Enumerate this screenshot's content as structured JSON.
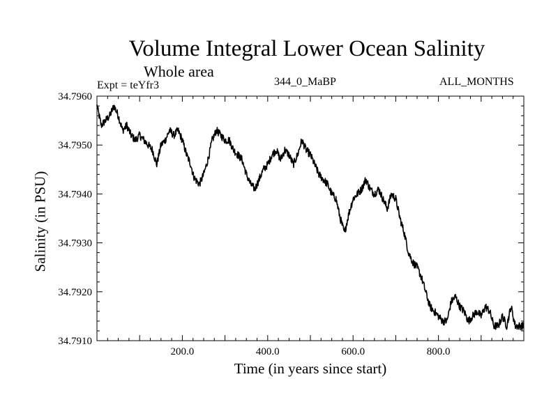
{
  "chart_data": {
    "type": "line",
    "title": "Volume Integral Lower Ocean Salinity",
    "subtitle": "Whole area",
    "experiment_label": "Expt = teYfr3",
    "run_label": "344_0_MaBP",
    "period_label": "ALL_MONTHS",
    "xlabel": "Time (in years since start)",
    "ylabel": "Salinity (in PSU)",
    "xlim": [
      0,
      1000
    ],
    "ylim": [
      34.791,
      34.796
    ],
    "x_ticks": [
      200,
      400,
      600,
      800
    ],
    "x_tick_labels": [
      "200.0",
      "400.0",
      "600.0",
      "800.0"
    ],
    "y_ticks": [
      34.791,
      34.792,
      34.793,
      34.794,
      34.795,
      34.796
    ],
    "y_tick_labels": [
      "34.7910",
      "34.7920",
      "34.7930",
      "34.7940",
      "34.7950",
      "34.7960"
    ],
    "grid": false,
    "series": [
      {
        "name": "Salinity",
        "color": "#000000",
        "x": [
          0,
          5,
          10,
          20,
          30,
          40,
          50,
          60,
          70,
          80,
          90,
          100,
          110,
          120,
          130,
          140,
          150,
          160,
          170,
          180,
          190,
          200,
          210,
          220,
          225,
          230,
          240,
          250,
          260,
          270,
          280,
          290,
          300,
          310,
          320,
          330,
          340,
          350,
          360,
          370,
          380,
          390,
          400,
          410,
          420,
          430,
          440,
          450,
          460,
          470,
          480,
          490,
          500,
          510,
          520,
          530,
          540,
          550,
          560,
          570,
          580,
          590,
          600,
          610,
          620,
          630,
          640,
          650,
          660,
          670,
          680,
          690,
          700,
          710,
          720,
          730,
          740,
          750,
          760,
          770,
          780,
          790,
          800,
          810,
          820,
          830,
          840,
          850,
          860,
          870,
          880,
          890,
          900,
          910,
          920,
          930,
          940,
          950,
          960,
          970,
          980,
          990,
          1000
        ],
        "values": [
          34.7958,
          34.7956,
          34.7954,
          34.7955,
          34.7956,
          34.7958,
          34.7956,
          34.7953,
          34.7954,
          34.7952,
          34.7951,
          34.7952,
          34.7951,
          34.795,
          34.7949,
          34.7946,
          34.795,
          34.7951,
          34.7953,
          34.7952,
          34.7953,
          34.7951,
          34.7948,
          34.7946,
          34.7944,
          34.7943,
          34.7942,
          34.7944,
          34.7947,
          34.7951,
          34.7953,
          34.7952,
          34.7951,
          34.7951,
          34.7949,
          34.7948,
          34.7947,
          34.7944,
          34.7942,
          34.7941,
          34.7943,
          34.7945,
          34.7946,
          34.7948,
          34.7949,
          34.7947,
          34.7949,
          34.7948,
          34.7946,
          34.7948,
          34.7951,
          34.7949,
          34.7948,
          34.7946,
          34.7944,
          34.7943,
          34.7942,
          34.794,
          34.7939,
          34.7935,
          34.7932,
          34.7936,
          34.7939,
          34.794,
          34.7941,
          34.7943,
          34.7941,
          34.794,
          34.7941,
          34.7939,
          34.7937,
          34.794,
          34.7939,
          34.7935,
          34.7932,
          34.7928,
          34.7926,
          34.7925,
          34.7923,
          34.792,
          34.7917,
          34.7916,
          34.7915,
          34.7914,
          34.7914,
          34.7918,
          34.7919,
          34.7917,
          34.7916,
          34.7914,
          34.7915,
          34.7916,
          34.7915,
          34.7917,
          34.7916,
          34.7913,
          34.7913,
          34.7915,
          34.7913,
          34.7917,
          34.7913,
          34.7913,
          34.7913
        ]
      }
    ]
  }
}
